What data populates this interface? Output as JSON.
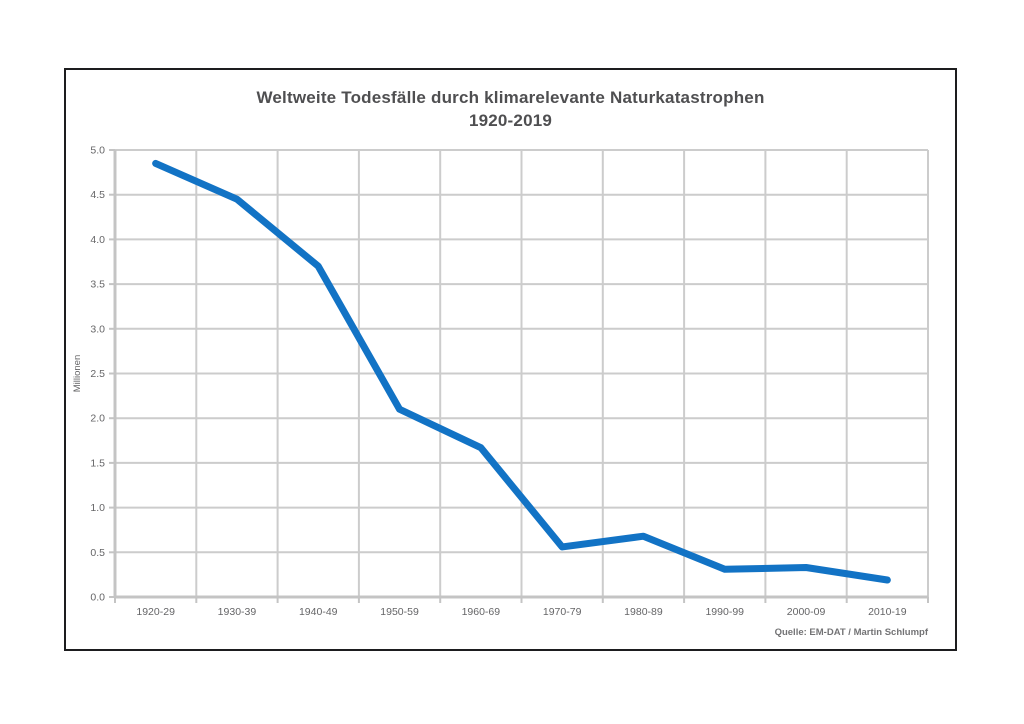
{
  "chart": {
    "title_line1": "Weltweite Todesfälle durch klimarelevante Naturkatastrophen",
    "title_line2": "1920-2019",
    "source": "Quelle:  EM-DAT / Martin Schlumpf",
    "colors": {
      "line": "#1273c5",
      "grid": "#cccccc",
      "axis": "#c4c4c4",
      "frame": "#1d1d1f",
      "title_text": "#4f4f51",
      "tick_text": "#656567",
      "source_text": "#737375"
    }
  },
  "chart_data": {
    "type": "line",
    "title": "Weltweite Todesfälle durch klimarelevante Naturkatastrophen 1920-2019",
    "categories": [
      "1920-29",
      "1930-39",
      "1940-49",
      "1950-59",
      "1960-69",
      "1970-79",
      "1980-89",
      "1990-99",
      "2000-09",
      "2010-19"
    ],
    "series": [
      {
        "name": "Todesfälle (Millionen)",
        "values": [
          4.85,
          4.45,
          3.7,
          2.1,
          1.67,
          0.56,
          0.68,
          0.31,
          0.33,
          0.19
        ]
      }
    ],
    "xlabel": "",
    "ylabel": "Millionen",
    "ylim": [
      0,
      5
    ],
    "ytick_step": 0.5,
    "y_tick_labels": [
      "0.0",
      "0.5",
      "1.0",
      "1.5",
      "2.0",
      "2.5",
      "3.0",
      "3.5",
      "4.0",
      "4.5",
      "5.0"
    ],
    "grid": true,
    "legend": false
  }
}
